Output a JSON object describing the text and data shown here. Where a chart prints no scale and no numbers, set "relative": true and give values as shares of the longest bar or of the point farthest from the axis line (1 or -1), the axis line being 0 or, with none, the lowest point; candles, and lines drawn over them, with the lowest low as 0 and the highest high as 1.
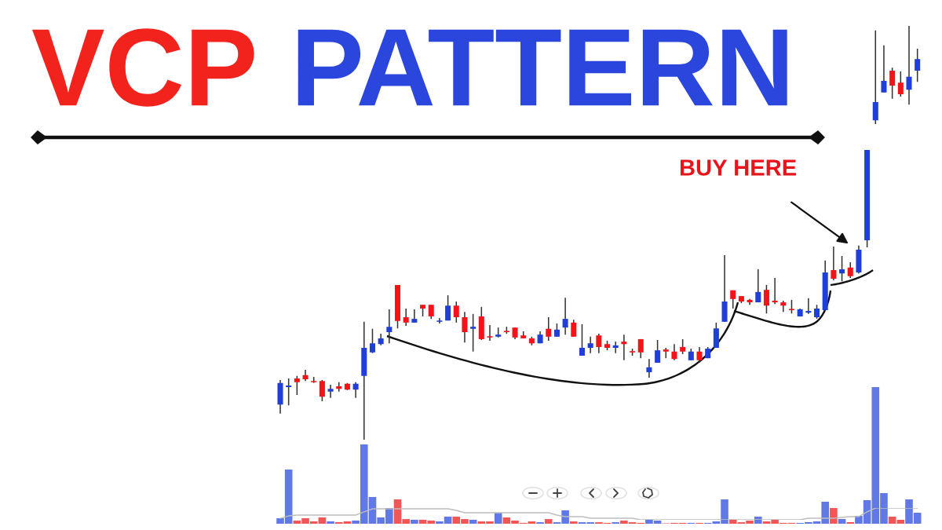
{
  "chart_data": [
    {
      "type": "candlestick",
      "title": "VCP PATTERN",
      "annotations": [
        "BUY HERE"
      ],
      "relative": true,
      "categories": [
        null,
        null,
        null,
        null,
        null,
        null,
        null,
        null,
        null,
        null,
        null,
        null,
        null,
        null,
        null,
        null,
        null,
        null,
        null,
        null,
        null,
        null,
        null,
        null,
        null,
        null,
        null,
        null,
        null,
        null,
        null,
        null,
        null,
        null,
        null,
        null,
        null,
        null,
        null,
        null,
        null,
        null,
        null,
        null,
        null,
        null,
        null,
        null,
        null,
        null,
        null,
        null,
        null,
        null,
        null,
        null,
        null,
        null,
        null,
        null,
        null,
        null,
        null,
        null,
        null,
        null,
        null,
        null,
        null,
        null,
        null,
        null,
        null,
        null,
        null,
        null,
        null
      ],
      "ohlc": [
        [
          0.085,
          0.144,
          0.063,
          0.137
        ],
        [
          0.127,
          0.148,
          0.083,
          0.131
        ],
        [
          0.148,
          0.154,
          0.108,
          0.139
        ],
        [
          0.156,
          0.169,
          0.142,
          0.146
        ],
        [
          0.14,
          0.152,
          0.137,
          0.139
        ],
        [
          0.142,
          0.144,
          0.093,
          0.104
        ],
        [
          0.116,
          0.133,
          0.101,
          0.123
        ],
        [
          0.129,
          0.139,
          0.116,
          0.123
        ],
        [
          0.135,
          0.137,
          0.12,
          0.121
        ],
        [
          0.121,
          0.139,
          0.101,
          0.135
        ],
        [
          0.154,
          0.285,
          0,
          0.222
        ],
        [
          0.211,
          0.268,
          0.209,
          0.233
        ],
        [
          0.231,
          0.256,
          0.228,
          0.245
        ],
        [
          0.26,
          0.315,
          0.233,
          0.273
        ],
        [
          0.374,
          0.374,
          0.269,
          0.287
        ],
        [
          0.296,
          0.317,
          0.275,
          0.283
        ],
        [
          0.283,
          0.315,
          0.283,
          0.292
        ],
        [
          0.326,
          0.326,
          0.298,
          0.317
        ],
        [
          0.326,
          0.326,
          0.292,
          0.298
        ],
        [
          0.285,
          0.294,
          0.281,
          0.287
        ],
        [
          0.288,
          0.349,
          0.288,
          0.324
        ],
        [
          0.324,
          0.334,
          0.283,
          0.296
        ],
        [
          0.296,
          0.309,
          0.235,
          0.26
        ],
        [
          0.268,
          0.304,
          0.213,
          0.273
        ],
        [
          0.298,
          0.321,
          0.241,
          0.243
        ],
        [
          0.25,
          0.277,
          0.239,
          0.247
        ],
        [
          0.249,
          0.271,
          0.247,
          0.254
        ],
        [
          0.262,
          0.273,
          0.256,
          0.26
        ],
        [
          0.271,
          0.271,
          0.243,
          0.247
        ],
        [
          0.252,
          0.262,
          0.245,
          0.245
        ],
        [
          0.245,
          0.249,
          0.228,
          0.233
        ],
        [
          0.233,
          0.262,
          0.233,
          0.254
        ],
        [
          0.268,
          0.296,
          0.239,
          0.249
        ],
        [
          0.249,
          0.281,
          0.249,
          0.266
        ],
        [
          0.271,
          0.343,
          0.254,
          0.292
        ],
        [
          0.283,
          0.29,
          0.249,
          0.249
        ],
        [
          0.203,
          0.279,
          0.203,
          0.222
        ],
        [
          0.222,
          0.249,
          0.209,
          0.233
        ],
        [
          0.252,
          0.256,
          0.209,
          0.224
        ],
        [
          0.231,
          0.239,
          0.216,
          0.222
        ],
        [
          0.222,
          0.237,
          0.209,
          0.228
        ],
        [
          0.237,
          0.254,
          0.192,
          0.231
        ],
        [
          0.213,
          0.22,
          0.203,
          0.211
        ],
        [
          0.243,
          0.243,
          0.197,
          0.211
        ],
        [
          0.163,
          0.195,
          0.15,
          0.175
        ],
        [
          0.186,
          0.241,
          0.186,
          0.216
        ],
        [
          0.218,
          0.222,
          0.197,
          0.213
        ],
        [
          0.213,
          0.231,
          0.192,
          0.195
        ],
        [
          0.224,
          0.243,
          0.207,
          0.213
        ],
        [
          0.192,
          0.22,
          0.192,
          0.213
        ],
        [
          0.213,
          0.224,
          0.186,
          0.192
        ],
        [
          0.197,
          0.224,
          0.197,
          0.22
        ],
        [
          0.222,
          0.283,
          0.222,
          0.269
        ],
        [
          0.285,
          0.446,
          0.285,
          0.334
        ],
        [
          0.361,
          0.361,
          0.317,
          0.34
        ],
        [
          0.347,
          0.347,
          0.33,
          0.334
        ],
        [
          0.338,
          0.34,
          0.326,
          0.332
        ],
        [
          0.332,
          0.412,
          0.332,
          0.357
        ],
        [
          0.362,
          0.374,
          0.305,
          0.324
        ],
        [
          0.336,
          0.391,
          0.328,
          0.332
        ],
        [
          0.332,
          0.336,
          0.309,
          0.324
        ],
        [
          0.315,
          0.338,
          0.305,
          0.313
        ],
        [
          0.298,
          0.317,
          0.298,
          0.315
        ],
        [
          0.307,
          0.342,
          0.304,
          0.311
        ],
        [
          0.296,
          0.326,
          0.292,
          0.317
        ],
        [
          0.313,
          0.433,
          0.313,
          0.404
        ],
        [
          0.41,
          0.467,
          0.385,
          0.389
        ],
        [
          0.402,
          0.444,
          0.383,
          0.412
        ],
        [
          0.416,
          0.429,
          0.391,
          0.395
        ],
        [
          0.404,
          0.469,
          0.402,
          0.459
        ],
        [
          0.482,
          0.7,
          0.465,
          0.7
        ],
        [
          0.772,
          0.989,
          0.763,
          0.816
        ],
        [
          0.839,
          0.953,
          0.839,
          0.867
        ],
        [
          0.892,
          0.899,
          0.824,
          0.856
        ],
        [
          0.863,
          0.89,
          0.829,
          0.835
        ],
        [
          0.846,
          1,
          0.81,
          0.877
        ],
        [
          0.892,
          0.945,
          0.865,
          0.92
        ]
      ],
      "colors": [
        "#1f3fd8",
        "#1f3fd8",
        "#f5131a",
        "#f5131a",
        "#f5131a",
        "#f5131a",
        "#1f3fd8",
        "#f5131a",
        "#f5131a",
        "#1f3fd8",
        "#1f3fd8",
        "#1f3fd8",
        "#1f3fd8",
        "#1f3fd8",
        "#f5131a",
        "#f5131a",
        "#1f3fd8",
        "#f5131a",
        "#f5131a",
        "#1f3fd8",
        "#1f3fd8",
        "#f5131a",
        "#f5131a",
        "#1f3fd8",
        "#f5131a",
        "#f5131a",
        "#1f3fd8",
        "#f5131a",
        "#f5131a",
        "#f5131a",
        "#f5131a",
        "#1f3fd8",
        "#f5131a",
        "#1f3fd8",
        "#1f3fd8",
        "#f5131a",
        "#1f3fd8",
        "#1f3fd8",
        "#f5131a",
        "#f5131a",
        "#1f3fd8",
        "#f5131a",
        "#f5131a",
        "#f5131a",
        "#1f3fd8",
        "#1f3fd8",
        "#f5131a",
        "#f5131a",
        "#f5131a",
        "#1f3fd8",
        "#f5131a",
        "#1f3fd8",
        "#1f3fd8",
        "#1f3fd8",
        "#f5131a",
        "#f5131a",
        "#f5131a",
        "#1f3fd8",
        "#f5131a",
        "#f5131a",
        "#f5131a",
        "#f5131a",
        "#1f3fd8",
        "#1f3fd8",
        "#1f3fd8",
        "#1f3fd8",
        "#f5131a",
        "#1f3fd8",
        "#f5131a",
        "#1f3fd8",
        "#1f3fd8",
        "#1f3fd8",
        "#1f3fd8",
        "#f5131a",
        "#f5131a",
        "#1f3fd8",
        "#1f3fd8"
      ]
    },
    {
      "type": "bar",
      "relative": true,
      "categories": [
        null,
        null,
        null,
        null,
        null,
        null,
        null,
        null,
        null,
        null,
        null,
        null,
        null,
        null,
        null,
        null,
        null,
        null,
        null,
        null,
        null,
        null,
        null,
        null,
        null,
        null,
        null,
        null,
        null,
        null,
        null,
        null,
        null,
        null,
        null,
        null,
        null,
        null,
        null,
        null,
        null,
        null,
        null,
        null,
        null,
        null,
        null,
        null,
        null,
        null,
        null,
        null,
        null,
        null,
        null,
        null,
        null,
        null,
        null,
        null,
        null,
        null,
        null,
        null,
        null,
        null,
        null,
        null,
        null,
        null,
        null,
        null,
        null,
        null,
        null,
        null,
        null
      ],
      "colors": [
        "#6079e6",
        "#6079e6",
        "#f25656",
        "#f25656",
        "#f25656",
        "#f25656",
        "#6079e6",
        "#f25656",
        "#f25656",
        "#6079e6",
        "#6079e6",
        "#6079e6",
        "#6079e6",
        "#6079e6",
        "#f25656",
        "#f25656",
        "#6079e6",
        "#f25656",
        "#f25656",
        "#6079e6",
        "#6079e6",
        "#f25656",
        "#f25656",
        "#6079e6",
        "#f25656",
        "#f25656",
        "#6079e6",
        "#f25656",
        "#f25656",
        "#f25656",
        "#f25656",
        "#6079e6",
        "#f25656",
        "#6079e6",
        "#6079e6",
        "#f25656",
        "#6079e6",
        "#6079e6",
        "#f25656",
        "#f25656",
        "#6079e6",
        "#f25656",
        "#f25656",
        "#f25656",
        "#6079e6",
        "#6079e6",
        "#f25656",
        "#f25656",
        "#f25656",
        "#6079e6",
        "#f25656",
        "#6079e6",
        "#6079e6",
        "#6079e6",
        "#f25656",
        "#f25656",
        "#f25656",
        "#6079e6",
        "#f25656",
        "#f25656",
        "#f25656",
        "#f25656",
        "#6079e6",
        "#6079e6",
        "#6079e6",
        "#6079e6",
        "#f25656",
        "#6079e6",
        "#f25656",
        "#6079e6",
        "#6079e6",
        "#6079e6",
        "#6079e6",
        "#f25656",
        "#f25656",
        "#6079e6",
        "#6079e6"
      ],
      "values": [
        0.04,
        0.397,
        0.023,
        0.04,
        0.017,
        0.046,
        0.017,
        0.011,
        0.017,
        0.023,
        0.58,
        0.195,
        0.046,
        0.115,
        0.178,
        0.034,
        0.029,
        0.029,
        0.023,
        0.017,
        0.052,
        0.052,
        0.034,
        0.029,
        0.017,
        0.017,
        0.08,
        0.046,
        0.023,
        0.006,
        0.017,
        0.011,
        0.034,
        0.011,
        0.098,
        0.017,
        0.011,
        0.011,
        0.011,
        0.006,
        0.011,
        0.023,
        0.011,
        0.006,
        0.029,
        0.023,
        0.003,
        0.006,
        0.006,
        0.006,
        0.006,
        0.006,
        0.017,
        0.178,
        0.029,
        0.011,
        0.023,
        0.052,
        0.017,
        0.029,
        0.006,
        0.006,
        0.006,
        0.011,
        0.017,
        0.161,
        0.115,
        0.034,
        0.011,
        0.057,
        0.172,
        1,
        0.224,
        0.052,
        0.029,
        0.178,
        0.08
      ]
    },
    {
      "type": "line",
      "relative": true,
      "categories": [
        null,
        null,
        null,
        null,
        null,
        null,
        null,
        null,
        null,
        null,
        null,
        null,
        null,
        null,
        null,
        null,
        null,
        null,
        null,
        null,
        null,
        null,
        null,
        null,
        null,
        null,
        null,
        null,
        null,
        null,
        null,
        null,
        null,
        null,
        null,
        null,
        null,
        null,
        null,
        null,
        null,
        null,
        null,
        null,
        null,
        null,
        null,
        null,
        null,
        null,
        null,
        null,
        null,
        null,
        null,
        null,
        null,
        null,
        null,
        null,
        null,
        null,
        null,
        null,
        null,
        null,
        null,
        null,
        null,
        null,
        null,
        null,
        null,
        null,
        null,
        null,
        null
      ],
      "color": "#bdbdbd",
      "values": [
        0.13,
        0.33,
        0.4,
        0.4,
        0.4,
        0.4,
        0.4,
        0.4,
        0.4,
        0.4,
        0.67,
        0.93,
        0.93,
        0.93,
        0.93,
        0.93,
        0.93,
        0.93,
        0.93,
        0.93,
        0.93,
        0.8,
        0.6,
        0.6,
        0.6,
        0.6,
        0.6,
        0.6,
        0.6,
        0.6,
        0.6,
        0.6,
        0.6,
        0.4,
        0.27,
        0.27,
        0.27,
        0.13,
        0.13,
        0.13,
        0.13,
        0.13,
        0.13,
        0,
        0,
        0,
        0,
        0,
        0,
        0,
        0,
        0,
        0,
        0,
        0,
        0,
        0,
        0,
        0,
        0,
        0,
        0,
        0,
        0.13,
        0.13,
        0.13,
        0.13,
        0.2,
        0.27,
        0.27,
        0.67,
        1,
        1,
        1,
        1,
        1,
        1
      ]
    }
  ]
}
